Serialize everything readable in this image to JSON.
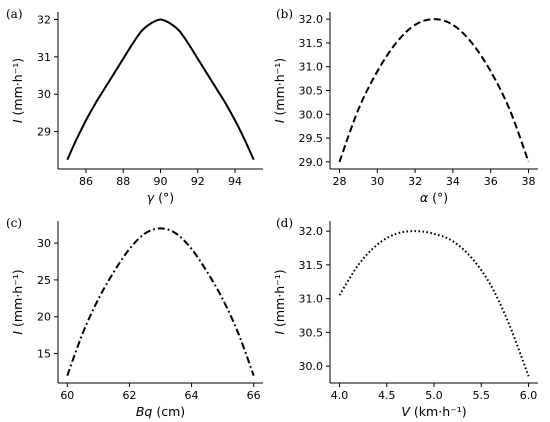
{
  "chart_data": [
    {
      "type": "line",
      "panel_label": "(a)",
      "x_symbol": "γ",
      "x_unit": " (°)",
      "y_symbol": "I",
      "y_unit": " (mm·h⁻¹)",
      "xlim": [
        84.5,
        95.5
      ],
      "ylim": [
        28.0,
        32.2
      ],
      "xticks": [
        86,
        88,
        90,
        92,
        94
      ],
      "xtick_labels": [
        "86",
        "88",
        "90",
        "92",
        "94"
      ],
      "yticks": [
        29,
        30,
        31,
        32
      ],
      "ytick_labels": [
        "29",
        "30",
        "31",
        "32"
      ],
      "line_style": "solid",
      "x": [
        85,
        85.5,
        86,
        86.5,
        87,
        87.5,
        88,
        88.5,
        89,
        89.5,
        90,
        90.5,
        91,
        91.5,
        92,
        92.5,
        93,
        93.5,
        94,
        94.5,
        95
      ],
      "y": [
        28.25,
        28.8,
        29.3,
        29.75,
        30.15,
        30.55,
        30.95,
        31.35,
        31.7,
        31.9,
        32.0,
        31.9,
        31.7,
        31.35,
        30.95,
        30.55,
        30.15,
        29.75,
        29.3,
        28.8,
        28.25
      ]
    },
    {
      "type": "line",
      "panel_label": "(b)",
      "x_symbol": "α",
      "x_unit": " (°)",
      "y_symbol": "I",
      "y_unit": " (mm·h⁻¹)",
      "xlim": [
        27.5,
        38.5
      ],
      "ylim": [
        28.85,
        32.15
      ],
      "xticks": [
        28,
        30,
        32,
        34,
        36,
        38
      ],
      "xtick_labels": [
        "28",
        "30",
        "32",
        "34",
        "36",
        "38"
      ],
      "yticks": [
        29.0,
        29.5,
        30.0,
        30.5,
        31.0,
        31.5,
        32.0
      ],
      "ytick_labels": [
        "29.0",
        "29.5",
        "30.0",
        "30.5",
        "31.0",
        "31.5",
        "32.0"
      ],
      "line_style": "dashed",
      "x": [
        28,
        29,
        30,
        31,
        32,
        33,
        34,
        35,
        36,
        37,
        38
      ],
      "y": [
        29.0,
        30.1,
        30.9,
        31.5,
        31.88,
        32.0,
        31.88,
        31.5,
        30.9,
        30.1,
        29.0
      ]
    },
    {
      "type": "line",
      "panel_label": "(c)",
      "x_symbol": "Bq",
      "x_unit": " (cm)",
      "y_symbol": "I",
      "y_unit": " (mm·h⁻¹)",
      "xlim": [
        59.7,
        66.3
      ],
      "ylim": [
        11.0,
        33.0
      ],
      "xticks": [
        60,
        62,
        64,
        66
      ],
      "xtick_labels": [
        "60",
        "62",
        "64",
        "66"
      ],
      "yticks": [
        15,
        20,
        25,
        30
      ],
      "ytick_labels": [
        "15",
        "20",
        "25",
        "30"
      ],
      "line_style": "dashdot",
      "x": [
        60,
        60.5,
        61,
        61.5,
        62,
        62.5,
        63,
        63.5,
        64,
        64.5,
        65,
        65.5,
        66
      ],
      "y": [
        12.0,
        17.8,
        22.4,
        26.1,
        29.2,
        31.3,
        32.0,
        31.3,
        29.2,
        26.1,
        22.4,
        17.8,
        12.0
      ]
    },
    {
      "type": "line",
      "panel_label": "(d)",
      "x_symbol": "V",
      "x_unit": " (km·h⁻¹)",
      "y_symbol": "I",
      "y_unit": " (mm·h⁻¹)",
      "xlim": [
        3.9,
        6.1
      ],
      "ylim": [
        29.75,
        32.15
      ],
      "xticks": [
        4.0,
        4.5,
        5.0,
        5.5,
        6.0
      ],
      "xtick_labels": [
        "4.0",
        "4.5",
        "5.0",
        "5.5",
        "6.0"
      ],
      "yticks": [
        30.0,
        30.5,
        31.0,
        31.5,
        32.0
      ],
      "ytick_labels": [
        "30.0",
        "30.5",
        "31.0",
        "31.5",
        "32.0"
      ],
      "line_style": "dotted",
      "x": [
        4.0,
        4.2,
        4.4,
        4.6,
        4.8,
        5.0,
        5.2,
        5.4,
        5.6,
        5.8,
        6.0
      ],
      "y": [
        31.05,
        31.5,
        31.8,
        31.96,
        32.0,
        31.96,
        31.85,
        31.6,
        31.2,
        30.6,
        29.85
      ]
    }
  ]
}
